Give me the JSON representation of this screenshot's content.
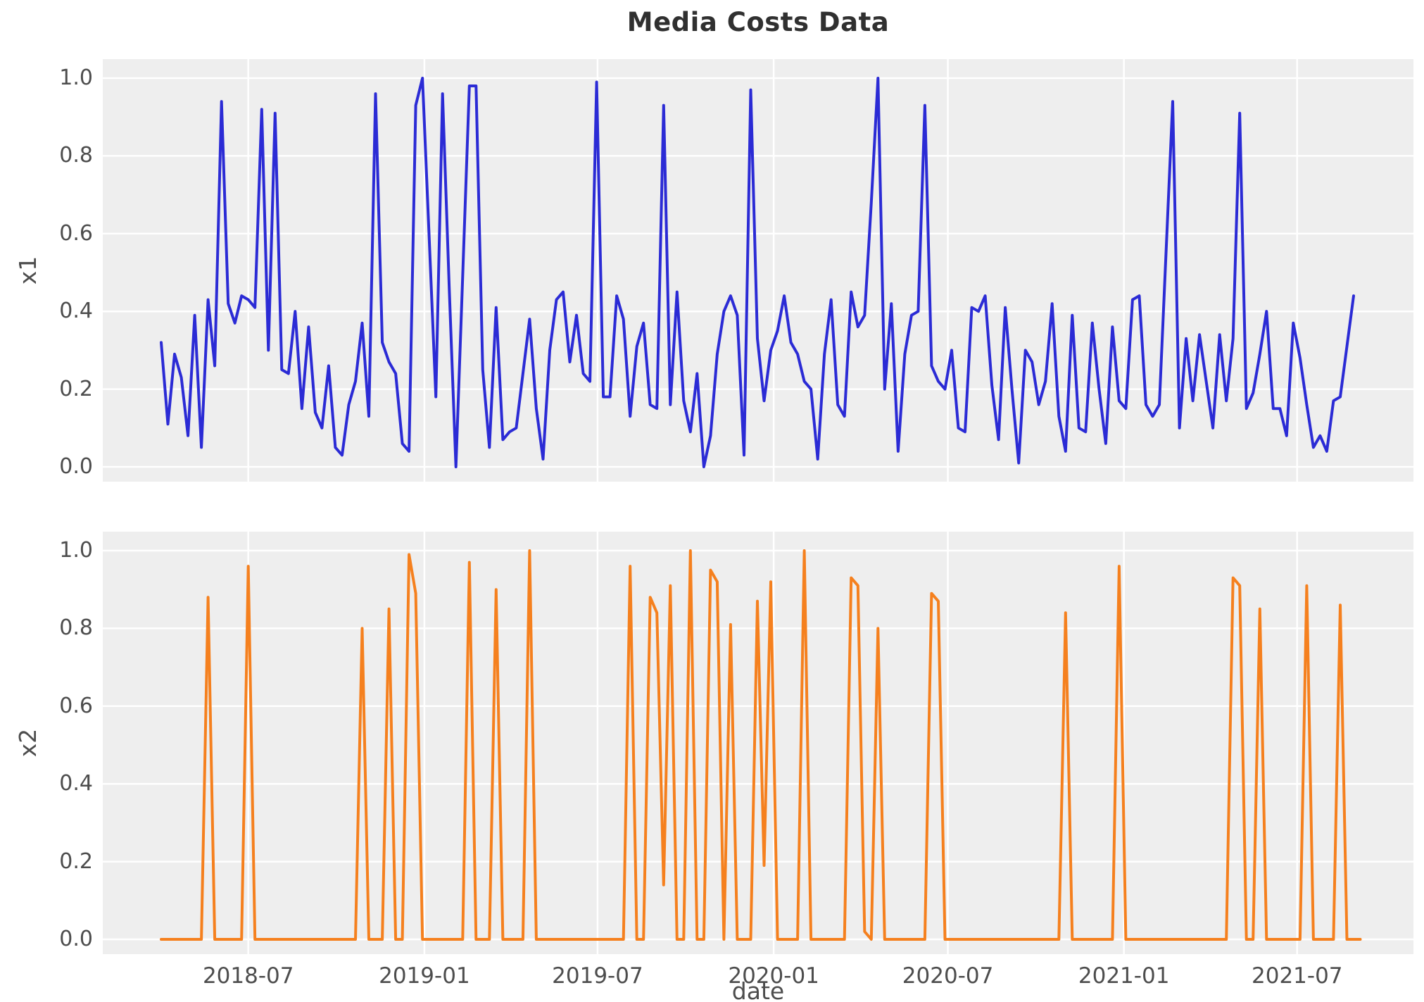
{
  "title": "Media Costs Data",
  "chart_data": {
    "type": "line",
    "title": "Media Costs Data",
    "xlabel": "date",
    "x_unit": "weekly samples starting 2018-04",
    "grid": true,
    "legend": "none",
    "plot_bg": "#eeeeee",
    "grid_color": "#ffffff",
    "text_color": "#4d4d4d",
    "ylim": [
      -0.05,
      1.05
    ],
    "y_ticks": [
      {
        "value": 0.0,
        "label": "0.0"
      },
      {
        "value": 0.2,
        "label": "0.2"
      },
      {
        "value": 0.4,
        "label": "0.4"
      },
      {
        "value": 0.6,
        "label": "0.6"
      },
      {
        "value": 0.8,
        "label": "0.8"
      },
      {
        "value": 1.0,
        "label": "1.0"
      }
    ],
    "x_ticks": [
      {
        "week": 13.0,
        "label": "2018-07"
      },
      {
        "week": 39.29,
        "label": "2019-01"
      },
      {
        "week": 65.14,
        "label": "2019-07"
      },
      {
        "week": 91.43,
        "label": "2020-01"
      },
      {
        "week": 117.43,
        "label": "2020-07"
      },
      {
        "week": 143.71,
        "label": "2021-01"
      },
      {
        "week": 169.57,
        "label": "2021-07"
      }
    ],
    "panels": [
      {
        "ylabel": "x1",
        "color": "#2b2bd5",
        "values": [
          0.32,
          0.11,
          0.29,
          0.23,
          0.08,
          0.39,
          0.05,
          0.43,
          0.26,
          0.94,
          0.42,
          0.37,
          0.44,
          0.43,
          0.41,
          0.92,
          0.3,
          0.91,
          0.25,
          0.24,
          0.4,
          0.15,
          0.36,
          0.14,
          0.1,
          0.26,
          0.05,
          0.03,
          0.16,
          0.22,
          0.37,
          0.13,
          0.96,
          0.32,
          0.27,
          0.24,
          0.06,
          0.04,
          0.93,
          1.0,
          0.59,
          0.18,
          0.96,
          0.46,
          0.0,
          0.49,
          0.98,
          0.98,
          0.25,
          0.05,
          0.41,
          0.07,
          0.09,
          0.1,
          0.24,
          0.38,
          0.15,
          0.02,
          0.3,
          0.43,
          0.45,
          0.27,
          0.39,
          0.24,
          0.22,
          0.99,
          0.18,
          0.18,
          0.44,
          0.38,
          0.13,
          0.31,
          0.37,
          0.16,
          0.15,
          0.93,
          0.16,
          0.45,
          0.17,
          0.09,
          0.24,
          0.0,
          0.08,
          0.29,
          0.4,
          0.44,
          0.39,
          0.03,
          0.97,
          0.33,
          0.17,
          0.3,
          0.35,
          0.44,
          0.32,
          0.29,
          0.22,
          0.2,
          0.02,
          0.29,
          0.43,
          0.16,
          0.13,
          0.45,
          0.36,
          0.39,
          0.68,
          1.0,
          0.2,
          0.42,
          0.04,
          0.29,
          0.39,
          0.4,
          0.93,
          0.26,
          0.22,
          0.2,
          0.3,
          0.1,
          0.09,
          0.41,
          0.4,
          0.44,
          0.21,
          0.07,
          0.41,
          0.2,
          0.01,
          0.3,
          0.27,
          0.16,
          0.22,
          0.42,
          0.13,
          0.04,
          0.39,
          0.1,
          0.09,
          0.37,
          0.2,
          0.06,
          0.36,
          0.17,
          0.15,
          0.43,
          0.44,
          0.16,
          0.13,
          0.16,
          0.55,
          0.94,
          0.1,
          0.33,
          0.17,
          0.34,
          0.22,
          0.1,
          0.34,
          0.17,
          0.33,
          0.91,
          0.15,
          0.19,
          0.29,
          0.4,
          0.15,
          0.15,
          0.08,
          0.37,
          0.28,
          0.16,
          0.05,
          0.08,
          0.04,
          0.17,
          0.18,
          0.31,
          0.44
        ]
      },
      {
        "ylabel": "x2",
        "color": "#f5801e",
        "values": [
          0,
          0,
          0,
          0,
          0,
          0,
          0,
          0.88,
          0,
          0,
          0,
          0,
          0,
          0.96,
          0,
          0,
          0,
          0,
          0,
          0,
          0,
          0,
          0,
          0,
          0,
          0,
          0,
          0,
          0,
          0,
          0.8,
          0,
          0,
          0,
          0.85,
          0,
          0,
          0.99,
          0.89,
          0,
          0,
          0,
          0,
          0,
          0,
          0,
          0.97,
          0,
          0,
          0,
          0.9,
          0,
          0,
          0,
          0,
          1.0,
          0,
          0,
          0,
          0,
          0,
          0,
          0,
          0,
          0,
          0,
          0,
          0,
          0,
          0,
          0.96,
          0,
          0,
          0.88,
          0.84,
          0.14,
          0.91,
          0,
          0,
          1.0,
          0,
          0,
          0.95,
          0.92,
          0,
          0.81,
          0,
          0,
          0,
          0.87,
          0.19,
          0.92,
          0,
          0,
          0,
          0,
          1.0,
          0,
          0,
          0,
          0,
          0,
          0,
          0.93,
          0.91,
          0.02,
          0,
          0.8,
          0,
          0,
          0,
          0,
          0,
          0,
          0,
          0.89,
          0.87,
          0,
          0,
          0,
          0,
          0,
          0,
          0,
          0,
          0,
          0,
          0,
          0,
          0,
          0,
          0,
          0,
          0,
          0,
          0.84,
          0,
          0,
          0,
          0,
          0,
          0,
          0,
          0.96,
          0,
          0,
          0,
          0,
          0,
          0,
          0,
          0,
          0,
          0,
          0,
          0,
          0,
          0,
          0,
          0,
          0.93,
          0.91,
          0,
          0,
          0.85,
          0,
          0,
          0,
          0,
          0,
          0,
          0.91,
          0,
          0,
          0,
          0,
          0.86,
          0,
          0,
          0
        ]
      }
    ]
  }
}
